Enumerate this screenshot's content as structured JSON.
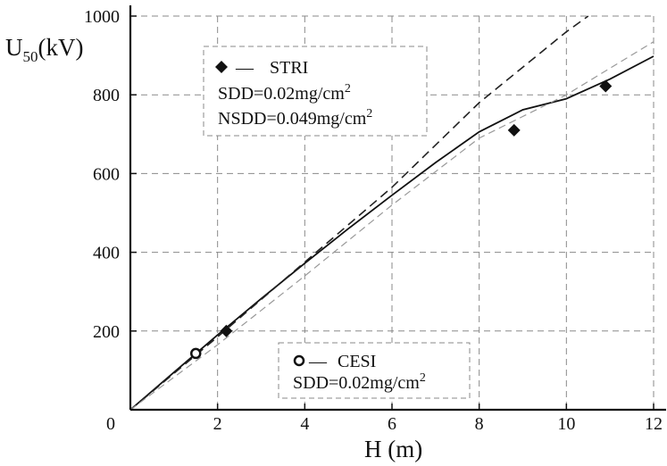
{
  "chart_data": {
    "type": "scatter",
    "xlabel": "H (m)",
    "ylabel_main": "U",
    "ylabel_sub": "50",
    "ylabel_unit": "(kV)",
    "xlim": [
      0,
      12
    ],
    "ylim": [
      0,
      1000
    ],
    "x_ticks": [
      0,
      2,
      4,
      6,
      8,
      10,
      12
    ],
    "y_ticks": [
      200,
      400,
      600,
      800,
      1000
    ],
    "grid": true,
    "series": [
      {
        "name": "STRI",
        "marker": "diamond",
        "points": [
          [
            2.2,
            200
          ],
          [
            8.8,
            710
          ],
          [
            10.9,
            822
          ]
        ]
      },
      {
        "name": "CESI",
        "marker": "circle",
        "points": [
          [
            1.5,
            143
          ]
        ]
      }
    ],
    "curves": [
      {
        "style": "solid",
        "points": [
          [
            0,
            0
          ],
          [
            1,
            95
          ],
          [
            2,
            190
          ],
          [
            3,
            282
          ],
          [
            4,
            372
          ],
          [
            5,
            460
          ],
          [
            6,
            545
          ],
          [
            7,
            628
          ],
          [
            8,
            706
          ],
          [
            9,
            762
          ],
          [
            10,
            790
          ],
          [
            11,
            840
          ],
          [
            12,
            898
          ]
        ]
      },
      {
        "style": "dashed",
        "points": [
          [
            0,
            0
          ],
          [
            2,
            185
          ],
          [
            4,
            375
          ],
          [
            6,
            565
          ],
          [
            8,
            780
          ],
          [
            10,
            960
          ],
          [
            10.5,
            1000
          ]
        ]
      },
      {
        "style": "dashed-light",
        "points": [
          [
            0,
            0
          ],
          [
            2,
            165
          ],
          [
            4,
            340
          ],
          [
            6,
            520
          ],
          [
            8,
            690
          ],
          [
            10,
            800
          ],
          [
            12,
            935
          ]
        ]
      }
    ],
    "legend_upper": {
      "dash": "—",
      "name": "STRI",
      "line2": "SDD=0.02mg/cm",
      "line2_sup": "2",
      "line3": "NSDD=0.049mg/cm",
      "line3_sup": "2",
      "placement": "top-left"
    },
    "legend_lower": {
      "dash": "—",
      "name": "CESI",
      "line2": "SDD=0.02mg/cm",
      "line2_sup": "2",
      "placement": "bottom-center"
    }
  }
}
